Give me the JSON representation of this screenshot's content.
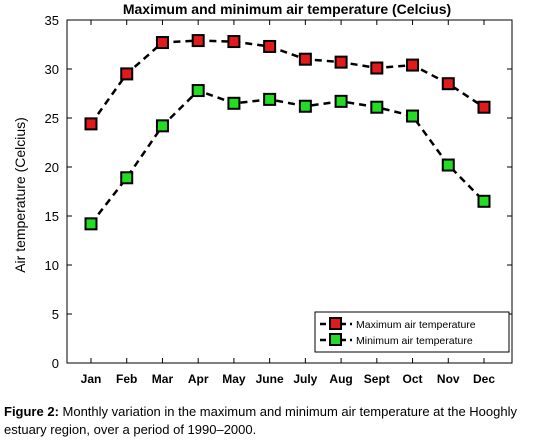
{
  "chart_data": {
    "type": "line",
    "title": "Maximum and minimum air temperature (Celcius)",
    "xlabel": "",
    "ylabel": "Air temperature (Celcius)",
    "categories": [
      "Jan",
      "Feb",
      "Mar",
      "Apr",
      "May",
      "June",
      "July",
      "Aug",
      "Sept",
      "Oct",
      "Nov",
      "Dec"
    ],
    "ylim": [
      0,
      35
    ],
    "yticks": [
      0,
      5,
      10,
      15,
      20,
      25,
      30,
      35
    ],
    "grid": false,
    "legend_position": "bottom-right",
    "series": [
      {
        "name": "Maximum air temperature",
        "color": "#e31a1c",
        "values": [
          24.4,
          29.5,
          32.7,
          32.9,
          32.8,
          32.3,
          31.0,
          30.7,
          30.1,
          30.4,
          28.5,
          26.1
        ]
      },
      {
        "name": "Minimum air temperature",
        "color": "#22dd22",
        "values": [
          14.2,
          18.9,
          24.2,
          27.8,
          26.5,
          26.9,
          26.2,
          26.7,
          26.1,
          25.2,
          20.2,
          16.5
        ]
      }
    ]
  },
  "caption": {
    "label": "Figure 2:",
    "text": " Monthly variation in the maximum and minimum air temperature at the Hooghly estuary region, over a period of 1990–2000."
  }
}
